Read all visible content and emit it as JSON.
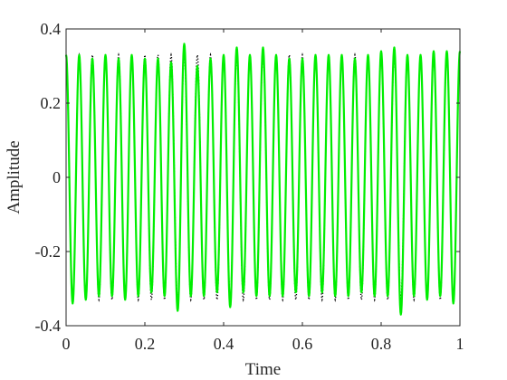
{
  "chart_data": {
    "type": "line",
    "title": "",
    "xlabel": "Time",
    "ylabel": "Amplitude",
    "xlim": [
      0,
      1
    ],
    "ylim": [
      -0.4,
      0.4
    ],
    "x_ticks": [
      0,
      0.2,
      0.4,
      0.6,
      0.8,
      1
    ],
    "x_tick_labels": [
      "0",
      "0.2",
      "0.4",
      "0.6",
      "0.8",
      "1"
    ],
    "y_ticks": [
      -0.4,
      -0.2,
      0,
      0.2,
      0.4
    ],
    "y_tick_labels": [
      "-0.4",
      "-0.2",
      "0",
      "0.2",
      "0.4"
    ],
    "grid": false,
    "legend": "none",
    "series": [
      {
        "style": "dotted",
        "color": "#000000",
        "amplitude": 0.33,
        "cycles": 30,
        "sample_x": [
          0,
          0.00833,
          0.01667,
          0.025,
          0.03333,
          0.5,
          0.50833,
          0.51667,
          0.525,
          0.53333,
          1
        ],
        "sample_y": [
          0.33,
          0,
          -0.33,
          0,
          0.33,
          0.33,
          0,
          -0.33,
          0,
          0.33,
          0.33
        ]
      },
      {
        "style": "solid",
        "color": "#00ee00",
        "peaks": [
          [
            0.0,
            0.33
          ],
          [
            0.0333,
            0.33
          ],
          [
            0.0667,
            0.32
          ],
          [
            0.1,
            0.33
          ],
          [
            0.1333,
            0.32
          ],
          [
            0.1667,
            0.33
          ],
          [
            0.2,
            0.32
          ],
          [
            0.2333,
            0.32
          ],
          [
            0.2667,
            0.31
          ],
          [
            0.3,
            0.36
          ],
          [
            0.3333,
            0.3
          ],
          [
            0.3667,
            0.32
          ],
          [
            0.4,
            0.33
          ],
          [
            0.4333,
            0.35
          ],
          [
            0.4667,
            0.33
          ],
          [
            0.5,
            0.35
          ],
          [
            0.5333,
            0.33
          ],
          [
            0.5667,
            0.32
          ],
          [
            0.6,
            0.32
          ],
          [
            0.6333,
            0.33
          ],
          [
            0.6667,
            0.33
          ],
          [
            0.7,
            0.33
          ],
          [
            0.7333,
            0.32
          ],
          [
            0.7667,
            0.33
          ],
          [
            0.8,
            0.34
          ],
          [
            0.8333,
            0.35
          ],
          [
            0.8667,
            0.33
          ],
          [
            0.9,
            0.33
          ],
          [
            0.9333,
            0.34
          ],
          [
            0.9667,
            0.34
          ]
        ],
        "troughs": [
          [
            0.0167,
            -0.34
          ],
          [
            0.05,
            -0.33
          ],
          [
            0.0833,
            -0.32
          ],
          [
            0.1167,
            -0.32
          ],
          [
            0.15,
            -0.33
          ],
          [
            0.1833,
            -0.32
          ],
          [
            0.2167,
            -0.31
          ],
          [
            0.25,
            -0.32
          ],
          [
            0.2833,
            -0.36
          ],
          [
            0.3167,
            -0.32
          ],
          [
            0.35,
            -0.32
          ],
          [
            0.3833,
            -0.31
          ],
          [
            0.4167,
            -0.35
          ],
          [
            0.45,
            -0.31
          ],
          [
            0.4833,
            -0.32
          ],
          [
            0.5167,
            -0.32
          ],
          [
            0.55,
            -0.32
          ],
          [
            0.5833,
            -0.31
          ],
          [
            0.6167,
            -0.32
          ],
          [
            0.65,
            -0.31
          ],
          [
            0.6833,
            -0.32
          ],
          [
            0.7167,
            -0.32
          ],
          [
            0.75,
            -0.31
          ],
          [
            0.7833,
            -0.32
          ],
          [
            0.8167,
            -0.32
          ],
          [
            0.85,
            -0.37
          ],
          [
            0.8833,
            -0.32
          ],
          [
            0.9167,
            -0.33
          ],
          [
            0.95,
            -0.32
          ],
          [
            0.9833,
            -0.34
          ]
        ],
        "end_value": [
          1.0,
          0.34
        ]
      }
    ]
  }
}
